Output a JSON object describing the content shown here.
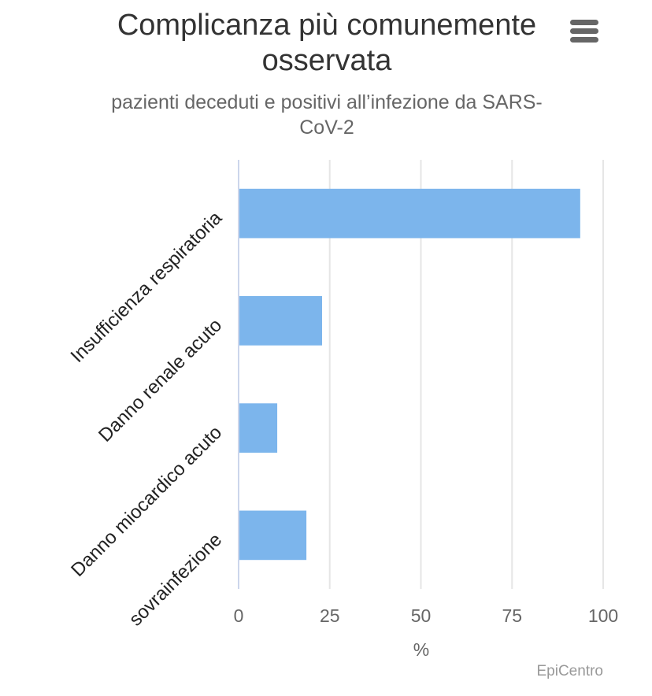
{
  "chart_data": {
    "type": "bar",
    "orientation": "horizontal",
    "title": "Complicanza più comunemente osservata",
    "subtitle": "pazienti deceduti e positivi all’infezione da SARS-CoV-2",
    "categories": [
      "Insufficienza respiratoria",
      "Danno renale acuto",
      "Danno miocardico acuto",
      "sovrainfezione"
    ],
    "values": [
      93.7,
      22.9,
      10.6,
      18.6
    ],
    "xlabel": "%",
    "xlim": [
      0,
      100
    ],
    "xticks": [
      0,
      25,
      50,
      75,
      100
    ],
    "grid": true,
    "legend": "none",
    "color": "#7cb5ec"
  },
  "credits": {
    "text": "EpiCentro"
  },
  "menu": {
    "icon": "hamburger-menu-icon"
  }
}
